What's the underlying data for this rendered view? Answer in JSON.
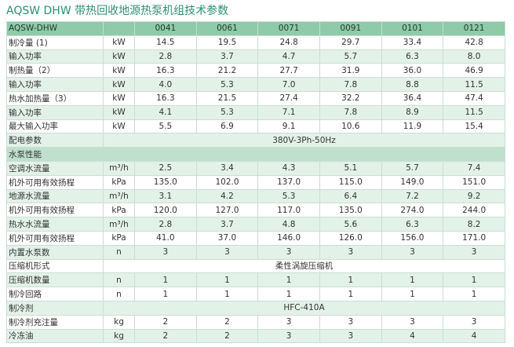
{
  "title": "AQSW DHW 带热回收地源热泵机组技术参数",
  "table": {
    "header": [
      "AQSW-DHW",
      "0041",
      "0061",
      "0071",
      "0091",
      "0101",
      "0121"
    ],
    "rows": [
      [
        "制冷量 (1)",
        "kW",
        "14.5",
        "19.5",
        "24.8",
        "29.7",
        "33.4",
        "42.8"
      ],
      [
        "输入功率",
        "kW",
        "2.8",
        "3.7",
        "4.7",
        "5.7",
        "6.3",
        "8.0"
      ],
      [
        "制热量（2）",
        "kW",
        "16.3",
        "21.2",
        "27.7",
        "31.9",
        "36.0",
        "46.9"
      ],
      [
        "输入功率",
        "kW",
        "4.0",
        "5.3",
        "7.0",
        "7.8",
        "8.8",
        "11.5"
      ],
      [
        "热水加热量（3）",
        "kW",
        "16.3",
        "21.5",
        "27.4",
        "32.2",
        "36.4",
        "47.4"
      ],
      [
        "输入功率",
        "kW",
        "4.1",
        "5.3",
        "7.1",
        "7.8",
        "8.9",
        "11.5"
      ],
      [
        "最大输入功率",
        "kW",
        "5.5",
        "6.9",
        "9.1",
        "10.6",
        "11.9",
        "15.4"
      ],
      [
        "配电参数",
        "380V-3Ph-50Hz"
      ],
      [
        "水泵性能"
      ],
      [
        "空调水流量",
        "m³/h",
        "2.5",
        "3.4",
        "4.3",
        "5.1",
        "5.7",
        "7.4"
      ],
      [
        "机外可用有效扬程",
        "kPa",
        "135.0",
        "102.0",
        "137.0",
        "115.0",
        "149.0",
        "151.0"
      ],
      [
        "地源水流量",
        "m³/h",
        "3.1",
        "4.2",
        "5.3",
        "6.4",
        "7.2",
        "9.2"
      ],
      [
        "机外可用有效扬程",
        "kPa",
        "120.0",
        "127.0",
        "117.0",
        "135.0",
        "274.0",
        "244.0"
      ],
      [
        "热水水流量",
        "m³/h",
        "2.8",
        "3.7",
        "4.8",
        "5.6",
        "6.3",
        "8.2"
      ],
      [
        "机外可用有效扬程",
        "kPa",
        "41.0",
        "37.0",
        "146.0",
        "126.0",
        "156.0",
        "171.0"
      ],
      [
        "内置水泵数",
        "n",
        "3",
        "3",
        "3",
        "3",
        "3",
        "3"
      ],
      [
        "压缩机形式",
        "柔性涡旋压缩机"
      ],
      [
        "压缩机数量",
        "n",
        "1",
        "1",
        "1",
        "1",
        "1",
        "1"
      ],
      [
        "制冷回路",
        "n",
        "1",
        "1",
        "1",
        "1",
        "1",
        "1"
      ],
      [
        "制冷剂",
        "HFC-410A"
      ],
      [
        "制冷剂充注量",
        "kg",
        "2",
        "2",
        "3",
        "3",
        "3",
        "3"
      ],
      [
        "冷冻油",
        "kg",
        "2",
        "2",
        "3",
        "3",
        "4",
        "4"
      ]
    ]
  }
}
